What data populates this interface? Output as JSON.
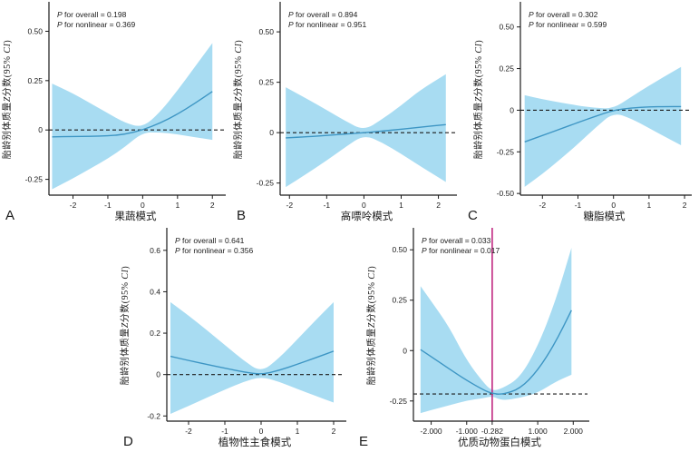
{
  "figure": {
    "background": "#ffffff",
    "colors": {
      "band": "#a8dcf2",
      "line": "#3e96c4",
      "axis": "#1a1a1a",
      "ref_line": "#1a1a1a",
      "vline": "#c02880",
      "text": "#1a1a1a"
    }
  },
  "chart_data": [
    {
      "type": "area",
      "panel_label": "A",
      "annotations": [
        "P for overall = 0.198",
        "P for nonlinear = 0.369"
      ],
      "xlabel": "果蔬模式",
      "ylabel": "胎龄别体质量Z分数(95% CI)",
      "xlim": [
        -2.69,
        2.28
      ],
      "ylim": [
        -0.33,
        0.64
      ],
      "x_ticks": [
        -2,
        -1,
        0,
        1,
        2
      ],
      "x_tick_labels": [
        "-2",
        "-1",
        "0",
        "1",
        "2"
      ],
      "y_ticks": [
        0.5,
        0.25,
        0,
        -0.25
      ],
      "y_tick_labels": [
        "0.50",
        "0.25",
        "0",
        "-0.25"
      ],
      "ref_y": 0,
      "vline_x": null,
      "x": [
        -2.6,
        -2.0,
        -1.5,
        -1.0,
        -0.5,
        0,
        0.5,
        1.0,
        1.5,
        2.0
      ],
      "estimate": [
        -0.035,
        -0.033,
        -0.032,
        -0.03,
        -0.022,
        0,
        0.035,
        0.08,
        0.135,
        0.195
      ],
      "lower": [
        -0.3,
        -0.245,
        -0.195,
        -0.145,
        -0.085,
        -0.012,
        -0.012,
        -0.022,
        -0.037,
        -0.05
      ],
      "upper": [
        0.235,
        0.185,
        0.135,
        0.085,
        0.035,
        0.012,
        0.09,
        0.2,
        0.32,
        0.44
      ]
    },
    {
      "type": "area",
      "panel_label": "B",
      "annotations": [
        "P for overall = 0.894",
        "P for nonlinear = 0.951"
      ],
      "xlabel": "高嘌呤模式",
      "ylabel": "胎龄别体质量Z分数(95% CI)",
      "xlim": [
        -2.25,
        2.4
      ],
      "ylim": [
        -0.31,
        0.64
      ],
      "x_ticks": [
        -2,
        -1,
        0,
        1,
        2
      ],
      "x_tick_labels": [
        "-2",
        "-1",
        "0",
        "1",
        "2"
      ],
      "y_ticks": [
        0.5,
        0.25,
        0,
        -0.25
      ],
      "y_tick_labels": [
        "0.50",
        "0.25",
        "0",
        "-0.25"
      ],
      "ref_y": 0,
      "vline_x": null,
      "x": [
        -2.1,
        -1.5,
        -1.0,
        -0.5,
        0,
        0.5,
        1.0,
        1.5,
        2.2
      ],
      "estimate": [
        -0.026,
        -0.02,
        -0.014,
        -0.007,
        0,
        0.008,
        0.017,
        0.027,
        0.04
      ],
      "lower": [
        -0.27,
        -0.2,
        -0.138,
        -0.072,
        -0.01,
        -0.05,
        -0.105,
        -0.165,
        -0.245
      ],
      "upper": [
        0.225,
        0.165,
        0.112,
        0.058,
        0.01,
        0.068,
        0.135,
        0.21,
        0.29
      ]
    },
    {
      "type": "area",
      "panel_label": "C",
      "annotations": [
        "P for overall = 0.302",
        "P for nonlinear = 0.599"
      ],
      "xlabel": "糖脂模式",
      "ylabel": "胎龄别体质量Z分数(95% CI)",
      "xlim": [
        -2.62,
        2.1
      ],
      "ylim": [
        -0.51,
        0.64
      ],
      "x_ticks": [
        -2,
        -1,
        0,
        1,
        2
      ],
      "x_tick_labels": [
        "-2",
        "-1",
        "0",
        "1",
        "2"
      ],
      "y_ticks": [
        0.5,
        0.25,
        0,
        -0.25,
        -0.5
      ],
      "y_tick_labels": [
        "0.50",
        "0.25",
        "0",
        "-0.25",
        "-0.50"
      ],
      "ref_y": 0,
      "vline_x": null,
      "x": [
        -2.5,
        -2.0,
        -1.5,
        -1.0,
        -0.5,
        0,
        0.5,
        1.0,
        1.5,
        1.9
      ],
      "estimate": [
        -0.19,
        -0.152,
        -0.113,
        -0.074,
        -0.036,
        0,
        0.014,
        0.02,
        0.022,
        0.022
      ],
      "lower": [
        -0.46,
        -0.383,
        -0.295,
        -0.203,
        -0.103,
        -0.013,
        -0.05,
        -0.108,
        -0.165,
        -0.21
      ],
      "upper": [
        0.09,
        0.066,
        0.046,
        0.028,
        0.013,
        0.01,
        0.08,
        0.148,
        0.21,
        0.26
      ]
    },
    {
      "type": "area",
      "panel_label": "D",
      "annotations": [
        "P for overall = 0.641",
        "P for nonlinear = 0.356"
      ],
      "xlabel": "植物性主食模式",
      "ylabel": "胎龄别体质量Z分数(95% CI)",
      "xlim": [
        -2.6,
        2.25
      ],
      "ylim": [
        -0.225,
        0.7
      ],
      "x_ticks": [
        -2,
        -1,
        0,
        1,
        2
      ],
      "x_tick_labels": [
        "-2",
        "-1",
        "0",
        "1",
        "2"
      ],
      "y_ticks": [
        0.6,
        0.4,
        0.2,
        0,
        -0.2
      ],
      "y_tick_labels": [
        "0.6",
        "0.4",
        "0.2",
        "0",
        "-0.2"
      ],
      "ref_y": 0,
      "vline_x": null,
      "x": [
        -2.5,
        -2.0,
        -1.5,
        -1.0,
        -0.5,
        0,
        0.5,
        1.0,
        1.5,
        2.0
      ],
      "estimate": [
        0.088,
        0.068,
        0.049,
        0.031,
        0.013,
        0,
        0.02,
        0.05,
        0.081,
        0.113
      ],
      "lower": [
        -0.19,
        -0.152,
        -0.112,
        -0.073,
        -0.036,
        -0.01,
        -0.035,
        -0.07,
        -0.103,
        -0.135
      ],
      "upper": [
        0.35,
        0.285,
        0.215,
        0.143,
        0.07,
        0.01,
        0.08,
        0.17,
        0.262,
        0.35
      ]
    },
    {
      "type": "area",
      "panel_label": "E",
      "annotations": [
        "P for overall = 0.033",
        "P for nonlinear = 0.017"
      ],
      "xlabel": "优质动物蛋白模式",
      "ylabel": "胎龄别体质量Z分数(95% CI)",
      "xlim": [
        -2.5,
        2.35
      ],
      "ylim": [
        -0.35,
        0.6
      ],
      "x_ticks": [
        -2,
        -1,
        -0.282,
        1,
        2
      ],
      "x_tick_labels": [
        "-2.000",
        "-1.000",
        "-0.282",
        "1.000",
        "2.000"
      ],
      "y_ticks": [
        0.5,
        0.25,
        0,
        -0.25
      ],
      "y_tick_labels": [
        "0.50",
        "0.25",
        "0",
        "-0.25"
      ],
      "ref_y": -0.215,
      "vline_x": -0.282,
      "x": [
        -2.3,
        -2.0,
        -1.5,
        -1.0,
        -0.5,
        -0.282,
        0,
        0.5,
        1.0,
        1.5,
        1.95
      ],
      "estimate": [
        0.005,
        -0.03,
        -0.09,
        -0.148,
        -0.198,
        -0.213,
        -0.218,
        -0.19,
        -0.1,
        0.04,
        0.2
      ],
      "lower": [
        -0.31,
        -0.295,
        -0.272,
        -0.248,
        -0.235,
        -0.226,
        -0.248,
        -0.235,
        -0.21,
        -0.155,
        -0.12
      ],
      "upper": [
        0.32,
        0.245,
        0.12,
        -0.05,
        -0.165,
        -0.2,
        -0.188,
        -0.135,
        0.02,
        0.245,
        0.51
      ]
    }
  ]
}
